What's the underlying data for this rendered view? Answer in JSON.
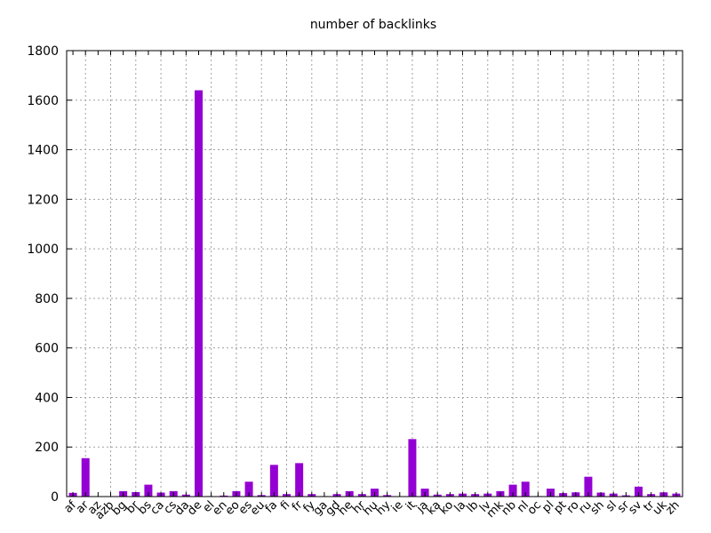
{
  "chart_data": {
    "type": "bar",
    "title": "number of backlinks",
    "xlabel": "",
    "ylabel": "",
    "ylim": [
      0,
      1800
    ],
    "yticks": [
      0,
      200,
      400,
      600,
      800,
      1000,
      1200,
      1400,
      1600,
      1800
    ],
    "grid": true,
    "bar_color": "#9400d3",
    "categories": [
      "af",
      "ar",
      "az",
      "azb",
      "bg",
      "br",
      "bs",
      "ca",
      "cs",
      "da",
      "de",
      "el",
      "en",
      "eo",
      "es",
      "eu",
      "fa",
      "fi",
      "fr",
      "fy",
      "ga",
      "gd",
      "he",
      "hr",
      "hu",
      "hy",
      "ie",
      "it",
      "ja",
      "ka",
      "ko",
      "la",
      "lb",
      "lv",
      "mk",
      "nb",
      "nl",
      "oc",
      "pl",
      "pt",
      "ro",
      "ru",
      "sh",
      "sl",
      "sr",
      "sv",
      "tr",
      "uk",
      "zh"
    ],
    "values": [
      15,
      155,
      0,
      0,
      22,
      18,
      48,
      16,
      22,
      8,
      1640,
      2,
      4,
      22,
      60,
      6,
      128,
      10,
      135,
      10,
      2,
      10,
      22,
      10,
      32,
      6,
      0,
      232,
      32,
      8,
      10,
      12,
      10,
      12,
      22,
      48,
      60,
      2,
      32,
      14,
      17,
      80,
      16,
      12,
      5,
      40,
      10,
      17,
      12
    ]
  }
}
